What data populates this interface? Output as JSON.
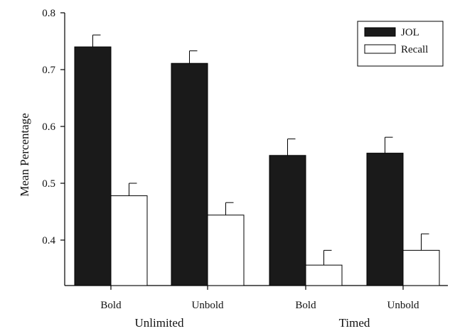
{
  "chart_data": {
    "type": "bar",
    "ylabel": "Mean Percentage",
    "ylim": [
      0.32,
      0.8
    ],
    "yticks": [
      "0.4",
      "0.5",
      "0.6",
      "0.7",
      "0.8"
    ],
    "categories": [
      "Bold",
      "Unbold",
      "Bold",
      "Unbold"
    ],
    "groups": [
      {
        "label": "Unlimited",
        "categories": [
          0,
          1
        ]
      },
      {
        "label": "Timed",
        "categories": [
          2,
          3
        ]
      }
    ],
    "series": [
      {
        "name": "JOL",
        "color": "#1a1a1a",
        "values": [
          0.74,
          0.711,
          0.549,
          0.553
        ],
        "errors": [
          0.021,
          0.022,
          0.029,
          0.028
        ]
      },
      {
        "name": "Recall",
        "color": "#ffffff",
        "values": [
          0.478,
          0.444,
          0.356,
          0.382
        ],
        "errors": [
          0.022,
          0.022,
          0.026,
          0.029
        ]
      }
    ],
    "legend": "top-right",
    "grid": false
  }
}
